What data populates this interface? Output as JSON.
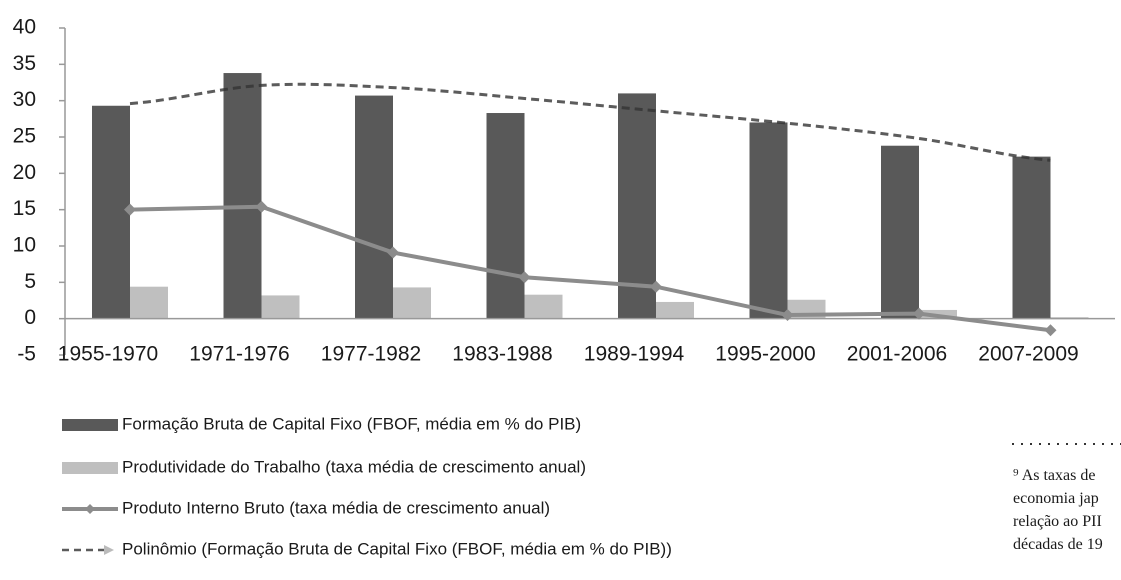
{
  "chart_data": {
    "type": "bar",
    "categories": [
      "1955-1970",
      "1971-1976",
      "1977-1982",
      "1983-1988",
      "1989-1994",
      "1995-2000",
      "2001-2006",
      "2007-2009"
    ],
    "series": [
      {
        "name": "Formação Bruta de Capital Fixo (FBOF, média em % do PIB)",
        "type": "bar",
        "color": "#595959",
        "values": [
          29.3,
          33.8,
          30.7,
          28.3,
          31.0,
          27.0,
          23.8,
          22.3
        ]
      },
      {
        "name": "Produtividade do Trabalho (taxa média de crescimento anual)",
        "type": "bar",
        "color": "#bfbfbf",
        "values": [
          4.4,
          3.2,
          4.3,
          3.3,
          2.3,
          2.6,
          1.2,
          0.2
        ]
      },
      {
        "name": "Produto Interno Bruto (taxa média de crescimento anual)",
        "type": "line",
        "color": "#8c8c8c",
        "values": [
          15.0,
          15.4,
          9.1,
          5.7,
          4.4,
          0.5,
          0.7,
          -1.6
        ]
      },
      {
        "name": "Polinômio (Formação Bruta de Capital Fixo (FBOF, média em % do PIB))",
        "type": "line",
        "dashed": true,
        "color": "#333333",
        "values": [
          29.6,
          32.1,
          31.8,
          30.3,
          28.6,
          26.9,
          24.8,
          21.8
        ]
      }
    ],
    "ylim": [
      -5,
      40
    ],
    "yticks": [
      -5,
      0,
      5,
      10,
      15,
      20,
      25,
      30,
      35,
      40
    ],
    "grid": false
  },
  "footnote": {
    "lines": [
      "⁹ As taxas de",
      "economia jap",
      "relação ao PII",
      "décadas de 19"
    ]
  }
}
